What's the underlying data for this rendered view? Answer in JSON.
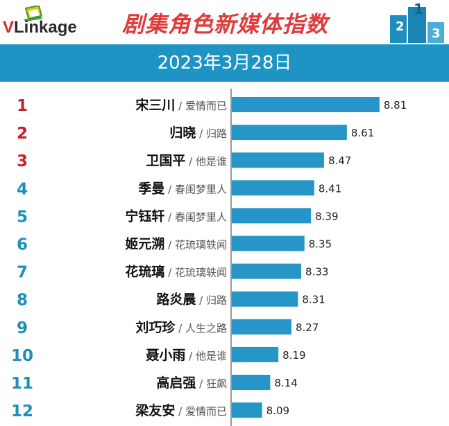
{
  "header": {
    "brand": "VLinkage",
    "title": "剧集角色新媒体指数",
    "date": "2023年3月28日",
    "accent_color": "#1e94c4",
    "title_color": "#e03b3b",
    "rank_colors": {
      "top3": "#c8202b",
      "rest": "#1e8fbd"
    },
    "logo_icon": "laptop-icon",
    "decoration_icon": "podium-icon"
  },
  "chart_data": {
    "type": "bar",
    "orientation": "horizontal",
    "categories": [
      "1",
      "2",
      "3",
      "4",
      "5",
      "6",
      "7",
      "8",
      "9",
      "10",
      "11",
      "12"
    ],
    "ranks": [
      "1",
      "2",
      "3",
      "4",
      "5",
      "6",
      "7",
      "8",
      "9",
      "10",
      "11",
      "12"
    ],
    "names": [
      "宋三川",
      "归晓",
      "卫国平",
      "季曼",
      "宁钰轩",
      "姬元溯",
      "花琉璃",
      "路炎晨",
      "刘巧珍",
      "聂小雨",
      "高启强",
      "梁友安"
    ],
    "dramas": [
      "爱情而已",
      "归路",
      "他是谁",
      "春闺梦里人",
      "春闺梦里人",
      "花琉璃轶闻",
      "花琉璃轶闻",
      "归路",
      "人生之路",
      "他是谁",
      "狂飙",
      "爱情而已"
    ],
    "values": [
      8.81,
      8.61,
      8.47,
      8.41,
      8.39,
      8.35,
      8.33,
      8.31,
      8.27,
      8.19,
      8.14,
      8.09
    ],
    "value_labels": [
      "8.81",
      "8.61",
      "8.47",
      "8.41",
      "8.39",
      "8.35",
      "8.33",
      "8.31",
      "8.27",
      "8.19",
      "8.14",
      "8.09"
    ],
    "xlim": [
      7.9,
      9.1
    ],
    "bar_color": "#2596c7"
  }
}
